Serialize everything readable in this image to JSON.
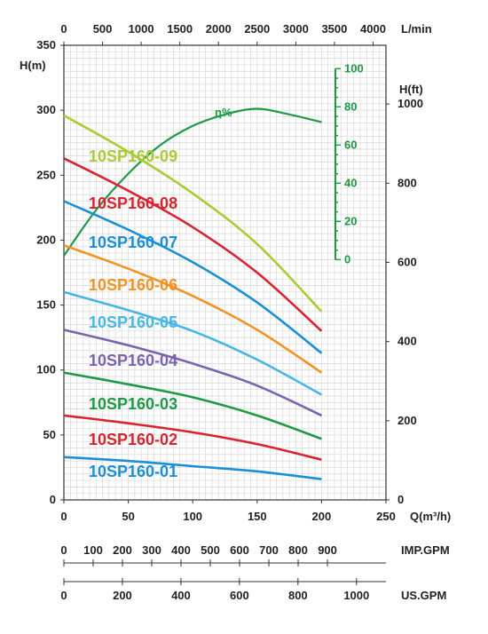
{
  "chart_data": {
    "type": "line",
    "x_axis": {
      "label": "Q(m³/h)",
      "ticks": [
        "0",
        "50",
        "100",
        "150",
        "200",
        "250"
      ],
      "range": [
        0,
        250
      ]
    },
    "y_axis": {
      "label": "H(m)",
      "ticks": [
        "0",
        "50",
        "100",
        "150",
        "200",
        "250",
        "300",
        "350"
      ],
      "range": [
        0,
        350
      ]
    },
    "top_axis": {
      "label": "L/min",
      "ticks": [
        "0",
        "500",
        "1000",
        "1500",
        "2000",
        "2500",
        "3000",
        "3500",
        "4000"
      ],
      "range_lpm": [
        0,
        4000
      ]
    },
    "right_axis": {
      "label": "H(ft)",
      "ticks": [
        "0",
        "200",
        "400",
        "600",
        "800",
        "1000"
      ],
      "ft_per_m": 3.28084
    },
    "efficiency_axis": {
      "ticks": [
        "0",
        "20",
        "40",
        "60",
        "80",
        "100"
      ],
      "color": "#1e9a46",
      "y_m_at_0": 185,
      "y_m_at_100": 332
    },
    "imp_gpm_axis": {
      "label": "IMP.GPM",
      "ticks": [
        "0",
        "100",
        "200",
        "300",
        "400",
        "500",
        "600",
        "700",
        "800",
        "900"
      ],
      "m3h_per_gpm": 0.227305
    },
    "us_gpm_axis": {
      "label": "US.GPM",
      "ticks": [
        "0",
        "200",
        "400",
        "600",
        "800",
        "1000"
      ],
      "m3h_per_gpm": 0.227125
    },
    "grid": true,
    "series": [
      {
        "name": "10SP160-01",
        "color": "#1a8fd6",
        "x": [
          0,
          50,
          100,
          150,
          200
        ],
        "y": [
          33,
          30,
          26,
          22,
          16
        ]
      },
      {
        "name": "10SP160-02",
        "color": "#d8242e",
        "x": [
          0,
          50,
          100,
          150,
          200
        ],
        "y": [
          65,
          59,
          52,
          43,
          31
        ]
      },
      {
        "name": "10SP160-03",
        "color": "#1e9a46",
        "x": [
          0,
          50,
          100,
          150,
          200
        ],
        "y": [
          98,
          89,
          79,
          65,
          47
        ]
      },
      {
        "name": "10SP160-04",
        "color": "#7b63ae",
        "x": [
          0,
          50,
          100,
          150,
          200
        ],
        "y": [
          131,
          119,
          105,
          88,
          65
        ]
      },
      {
        "name": "10SP160-05",
        "color": "#46b6e4",
        "x": [
          0,
          50,
          100,
          150,
          200
        ],
        "y": [
          160,
          146,
          130,
          108,
          81
        ]
      },
      {
        "name": "10SP160-06",
        "color": "#f39224",
        "x": [
          0,
          50,
          100,
          150,
          200
        ],
        "y": [
          196,
          178,
          157,
          131,
          98
        ]
      },
      {
        "name": "10SP160-07",
        "color": "#1a8fd6",
        "x": [
          0,
          50,
          100,
          150,
          200
        ],
        "y": [
          230,
          208,
          183,
          152,
          113
        ]
      },
      {
        "name": "10SP160-08",
        "color": "#d8242e",
        "x": [
          0,
          50,
          100,
          150,
          200
        ],
        "y": [
          263,
          238,
          210,
          175,
          130
        ]
      },
      {
        "name": "10SP160-09",
        "color": "#a9cb35",
        "x": [
          0,
          50,
          100,
          150,
          200
        ],
        "y": [
          296,
          268,
          236,
          197,
          145
        ]
      }
    ],
    "efficiency_curve": {
      "label": "η%",
      "color": "#1e9a46",
      "x": [
        0,
        25,
        50,
        75,
        100,
        125,
        150,
        175,
        200
      ],
      "eta": [
        2,
        26,
        45,
        60,
        70,
        76,
        79,
        76,
        72
      ]
    }
  }
}
